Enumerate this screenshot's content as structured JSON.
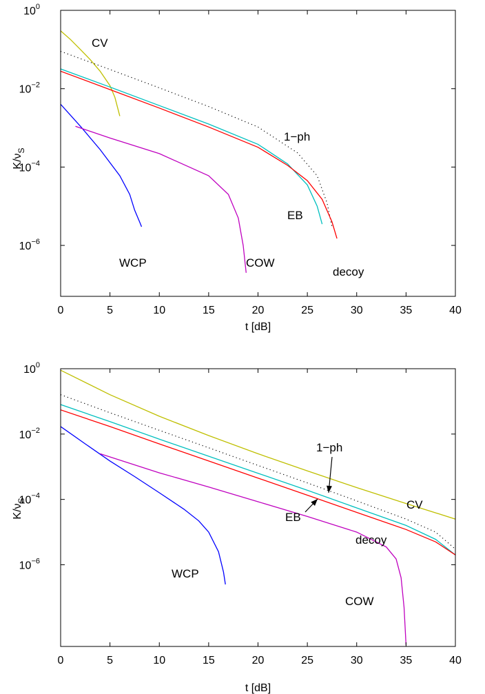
{
  "chart_data": [
    {
      "type": "line",
      "xlabel": "t [dB]",
      "ylabel": "K/ν_S",
      "ylabel_main": "K/ν",
      "ylabel_sub": "S",
      "xlim": [
        0,
        40
      ],
      "ylim_log10": [
        -7.3,
        0
      ],
      "y_scale": "log",
      "xticks": [
        0,
        5,
        10,
        15,
        20,
        25,
        30,
        35,
        40
      ],
      "yticks_exp": [
        0,
        -2,
        -4,
        -6
      ],
      "ytick_base": "10",
      "grid": false,
      "series": [
        {
          "name": "CV",
          "color": "#bfbf00",
          "style": "solid",
          "x": [
            0,
            1,
            2,
            3,
            4,
            5,
            5.5,
            6
          ],
          "y": [
            0.3,
            0.18,
            0.1,
            0.055,
            0.028,
            0.012,
            0.006,
            0.002
          ]
        },
        {
          "name": "1-ph",
          "color": "#000000",
          "style": "dotted",
          "x": [
            0,
            5,
            10,
            15,
            20,
            24,
            26,
            27,
            27.5
          ],
          "y": [
            0.09,
            0.031,
            0.0105,
            0.0035,
            0.00105,
            0.00023,
            6e-05,
            1.2e-05,
            3e-06
          ]
        },
        {
          "name": "EB",
          "color": "#00bfbf",
          "style": "solid",
          "x": [
            0,
            5,
            10,
            15,
            20,
            23,
            25,
            26,
            26.5
          ],
          "y": [
            0.032,
            0.011,
            0.0037,
            0.00125,
            0.00038,
            0.00012,
            3.5e-05,
            1e-05,
            3.5e-06
          ]
        },
        {
          "name": "decoy",
          "color": "#ff0000",
          "style": "solid",
          "x": [
            0,
            5,
            10,
            15,
            20,
            23,
            25,
            26.5,
            27.5,
            28
          ],
          "y": [
            0.028,
            0.0095,
            0.0032,
            0.00105,
            0.00032,
            0.00011,
            4.5e-05,
            1.5e-05,
            4e-06,
            1.5e-06
          ]
        },
        {
          "name": "WCP",
          "color": "#0000ff",
          "style": "solid",
          "x": [
            0,
            2,
            4,
            6,
            7,
            7.5,
            8,
            8.2
          ],
          "y": [
            0.004,
            0.0011,
            0.00028,
            6e-05,
            2e-05,
            8e-06,
            4e-06,
            3e-06
          ]
        },
        {
          "name": "COW",
          "color": "#bf00bf",
          "style": "solid",
          "x": [
            1.5,
            5,
            10,
            15,
            17,
            18,
            18.5,
            18.8
          ],
          "y": [
            0.0011,
            0.00055,
            0.00022,
            6e-05,
            2e-05,
            5e-06,
            1e-06,
            2e-07
          ]
        }
      ],
      "annotations": [
        "CV",
        "1−ph",
        "EB",
        "WCP",
        "COW",
        "decoy"
      ]
    },
    {
      "type": "line",
      "xlabel": "t [dB]",
      "ylabel": "K/ν_S",
      "ylabel_main": "K/ν",
      "ylabel_sub": "S",
      "xlim": [
        0,
        40
      ],
      "ylim_log10": [
        -8.5,
        0
      ],
      "y_scale": "log",
      "xticks": [
        0,
        5,
        10,
        15,
        20,
        25,
        30,
        35,
        40
      ],
      "yticks_exp": [
        0,
        -2,
        -4,
        -6
      ],
      "ytick_base": "10",
      "grid": false,
      "series": [
        {
          "name": "CV",
          "color": "#bfbf00",
          "style": "solid",
          "x": [
            0,
            5,
            10,
            15,
            20,
            25,
            30,
            35,
            40
          ],
          "y": [
            0.9,
            0.16,
            0.035,
            0.009,
            0.0025,
            0.00075,
            0.00023,
            7.5e-05,
            2.5e-05
          ]
        },
        {
          "name": "1-ph",
          "color": "#000000",
          "style": "dotted",
          "x": [
            0,
            5,
            10,
            15,
            20,
            25,
            30,
            35,
            38,
            40
          ],
          "y": [
            0.16,
            0.045,
            0.013,
            0.0038,
            0.0011,
            0.00032,
            9e-05,
            2.5e-05,
            1e-05,
            3e-06
          ]
        },
        {
          "name": "EB",
          "color": "#00bfbf",
          "style": "solid",
          "x": [
            0,
            5,
            10,
            15,
            20,
            25,
            30,
            35,
            38,
            40
          ],
          "y": [
            0.08,
            0.024,
            0.007,
            0.0021,
            0.00063,
            0.00019,
            5.5e-05,
            1.6e-05,
            6e-06,
            2e-06
          ]
        },
        {
          "name": "decoy",
          "color": "#ff0000",
          "style": "solid",
          "x": [
            0,
            5,
            10,
            15,
            20,
            25,
            30,
            35,
            38,
            40
          ],
          "y": [
            0.055,
            0.017,
            0.005,
            0.0015,
            0.00045,
            0.000135,
            4e-05,
            1.2e-05,
            5e-06,
            2e-06
          ]
        },
        {
          "name": "WCP",
          "color": "#0000ff",
          "style": "solid",
          "x": [
            0,
            2.5,
            5,
            7.5,
            10,
            12.5,
            14,
            15,
            16,
            16.5,
            16.7
          ],
          "y": [
            0.017,
            0.005,
            0.0015,
            0.0005,
            0.00016,
            5e-05,
            2.2e-05,
            1e-05,
            2.5e-06,
            6e-07,
            2.5e-07
          ]
        },
        {
          "name": "COW",
          "color": "#bf00bf",
          "style": "solid",
          "x": [
            4,
            10,
            15,
            20,
            25,
            30,
            33,
            34,
            34.5,
            34.8,
            35
          ],
          "y": [
            0.0025,
            0.00065,
            0.00024,
            8.5e-05,
            3e-05,
            1e-05,
            3.5e-06,
            1.5e-06,
            4e-07,
            5e-08,
            3.5e-09
          ]
        }
      ],
      "annotations": [
        "1−ph",
        "EB",
        "CV",
        "decoy",
        "WCP",
        "COW"
      ]
    }
  ]
}
